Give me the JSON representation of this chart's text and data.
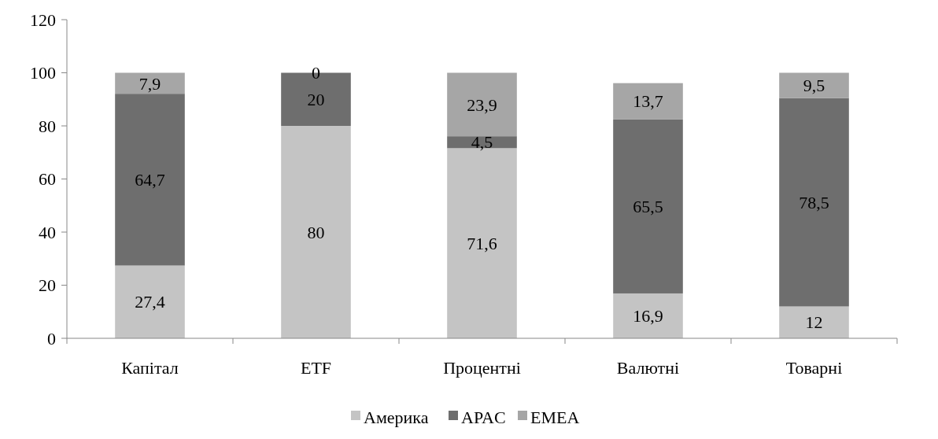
{
  "chart_data": {
    "type": "bar",
    "stacked": true,
    "categories": [
      "Капітал",
      "ETF",
      "Процентні",
      "Валютні",
      "Товарні"
    ],
    "series": [
      {
        "name": "Америка",
        "color": "#c4c4c4",
        "values": [
          27.4,
          80,
          71.6,
          16.9,
          12
        ],
        "value_labels": [
          "27,4",
          "80",
          "71,6",
          "16,9",
          "12"
        ]
      },
      {
        "name": "APAC",
        "color": "#6e6e6e",
        "values": [
          64.7,
          20,
          4.5,
          65.5,
          78.5
        ],
        "value_labels": [
          "64,7",
          "20",
          "4,5",
          "65,5",
          "78,5"
        ]
      },
      {
        "name": "EMEA",
        "color": "#a6a6a6",
        "values": [
          7.9,
          0,
          23.9,
          13.7,
          9.5
        ],
        "value_labels": [
          "7,9",
          "0",
          "23,9",
          "13,7",
          "9,5"
        ]
      }
    ],
    "ylim": [
      0,
      120
    ],
    "yticks": [
      0,
      20,
      40,
      60,
      80,
      100,
      120
    ],
    "grid": false,
    "legend": "bottom"
  }
}
